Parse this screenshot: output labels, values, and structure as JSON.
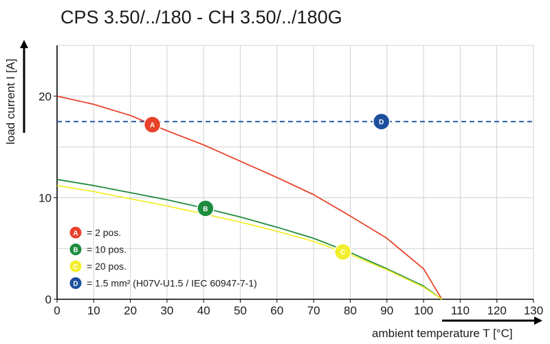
{
  "chart_data": {
    "type": "line",
    "title": "CPS 3.50/../180 - CH 3.50/../180G",
    "xlabel": "ambient temperature T [°C]",
    "ylabel": "load current I [A]",
    "xlim": [
      0,
      130
    ],
    "ylim": [
      0,
      25
    ],
    "xticks": [
      "0",
      "10",
      "20",
      "30",
      "40",
      "50",
      "60",
      "70",
      "80",
      "90",
      "100",
      "110",
      "120",
      "130"
    ],
    "yticks": [
      "0",
      "10",
      "20"
    ],
    "grid": true,
    "series": [
      {
        "id": "A",
        "name": "= 2 pos.",
        "color": "#e8432a",
        "style": "solid",
        "marker_x": 26,
        "x": [
          0,
          10,
          20,
          30,
          40,
          50,
          60,
          70,
          80,
          90,
          100,
          105
        ],
        "y": [
          20.0,
          19.2,
          18.1,
          16.6,
          15.2,
          13.6,
          12.0,
          10.3,
          8.2,
          6.0,
          3.0,
          0
        ]
      },
      {
        "id": "B",
        "name": "= 10 pos.",
        "color": "#1e8c3e",
        "style": "solid",
        "marker_x": 40.5,
        "x": [
          0,
          10,
          20,
          30,
          40,
          50,
          60,
          70,
          80,
          90,
          100,
          105
        ],
        "y": [
          11.8,
          11.2,
          10.5,
          9.8,
          9.0,
          8.1,
          7.1,
          6.0,
          4.6,
          3.0,
          1.3,
          0
        ]
      },
      {
        "id": "C",
        "name": "= 20 pos.",
        "color": "#f2ee2e",
        "style": "solid",
        "marker_x": 78,
        "x": [
          0,
          10,
          20,
          30,
          40,
          50,
          60,
          70,
          80,
          90,
          100,
          105
        ],
        "y": [
          11.2,
          10.6,
          9.9,
          9.2,
          8.4,
          7.6,
          6.7,
          5.7,
          4.4,
          2.9,
          1.2,
          0
        ]
      },
      {
        "id": "D",
        "name": "= 1.5 mm² (H07V-U1.5 / IEC 60947-7-1)",
        "color": "#1c4f9c",
        "style": "dashed",
        "marker_x": 88.5,
        "x": [
          0,
          130
        ],
        "y": [
          17.5,
          17.5
        ]
      }
    ]
  }
}
